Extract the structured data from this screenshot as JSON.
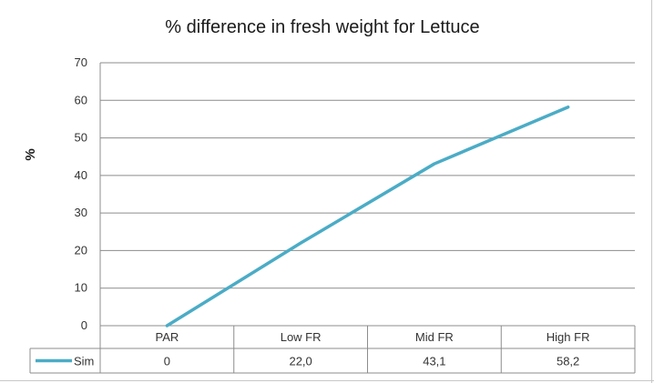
{
  "chart_data": {
    "type": "line",
    "title": "% difference in fresh weight for Lettuce",
    "ylabel": "%",
    "xlabel": "",
    "ylim": [
      0,
      70
    ],
    "yticks": [
      0,
      10,
      20,
      30,
      40,
      50,
      60,
      70
    ],
    "grid": true,
    "categories": [
      "PAR",
      "Low FR",
      "Mid FR",
      "High FR"
    ],
    "series": [
      {
        "name": "Sim",
        "values": [
          0,
          22.0,
          43.1,
          58.2
        ],
        "value_labels": [
          "0",
          "22,0",
          "43,1",
          "58,2"
        ],
        "color": "#4bacc6"
      }
    ],
    "legend": "data-table-left"
  }
}
